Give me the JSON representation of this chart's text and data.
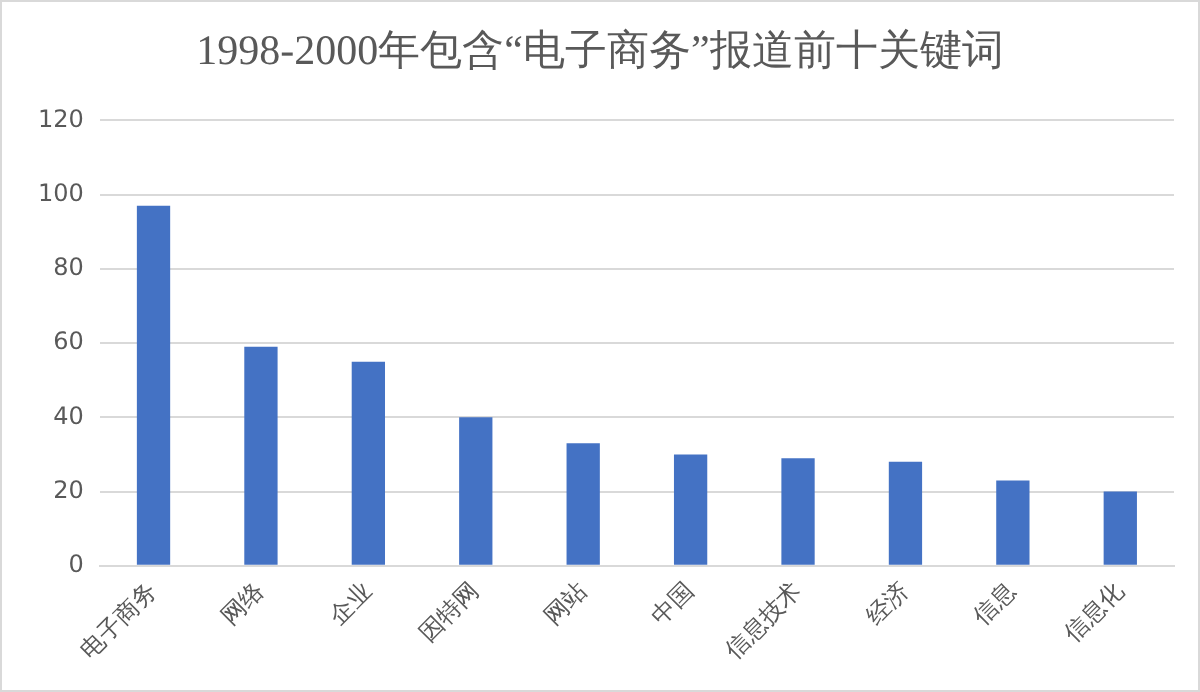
{
  "chart_data": {
    "type": "bar",
    "title": "1998-2000年包含“电子商务”报道前十关键词",
    "categories": [
      "电子商务",
      "网络",
      "企业",
      "因特网",
      "网站",
      "中国",
      "信息技术",
      "经济",
      "信息",
      "信息化"
    ],
    "values": [
      97,
      59,
      55,
      40,
      33,
      30,
      29,
      28,
      23,
      20
    ],
    "color": "#4472c4",
    "ylim": [
      0,
      120
    ],
    "yticks": [
      0,
      20,
      40,
      60,
      80,
      100,
      120
    ],
    "grid": "y",
    "legend": false
  }
}
